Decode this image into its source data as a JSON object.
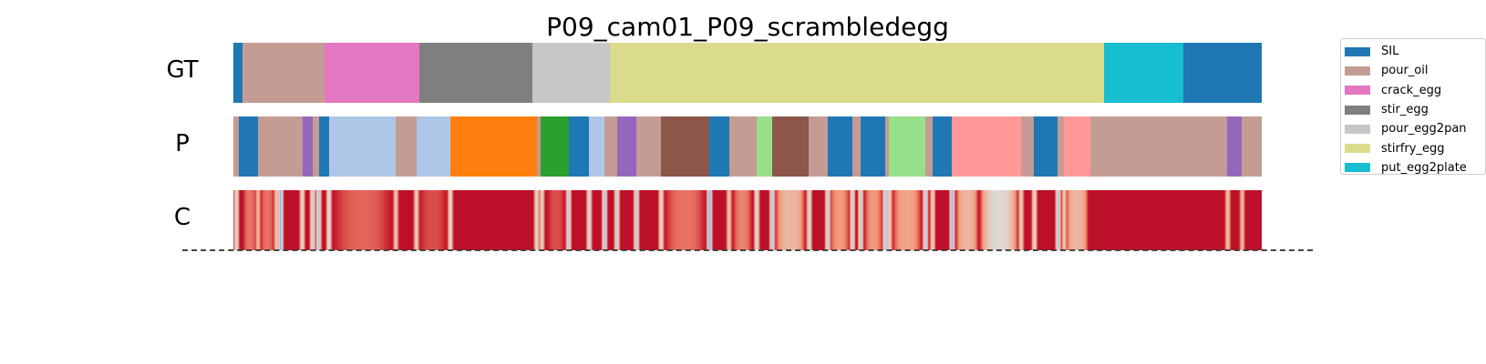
{
  "chart_data": {
    "type": "segmentation",
    "title": "P09_cam01_P09_scrambledegg",
    "rows": [
      {
        "label": "GT",
        "segments": [
          {
            "action": "SIL",
            "start": 0,
            "end": 0.9
          },
          {
            "action": "pour_oil",
            "start": 0.9,
            "end": 8.9
          },
          {
            "action": "crack_egg",
            "start": 8.9,
            "end": 18.1
          },
          {
            "action": "stir_egg",
            "start": 18.1,
            "end": 29.1
          },
          {
            "action": "pour_egg2pan",
            "start": 29.1,
            "end": 36.6
          },
          {
            "action": "stirfry_egg",
            "start": 36.6,
            "end": 84.7
          },
          {
            "action": "put_egg2plate",
            "start": 84.7,
            "end": 92.4
          },
          {
            "action": "SIL",
            "start": 92.4,
            "end": 100
          }
        ]
      },
      {
        "label": "P",
        "segments": [
          {
            "action": "pour_oil",
            "start": 0,
            "end": 0.5
          },
          {
            "action": "SIL",
            "start": 0.5,
            "end": 2.4
          },
          {
            "action": "pour_oil",
            "start": 2.4,
            "end": 6.7
          },
          {
            "action": "class_purple",
            "start": 6.7,
            "end": 7.7
          },
          {
            "action": "pour_oil",
            "start": 7.7,
            "end": 8.3
          },
          {
            "action": "SIL",
            "start": 8.3,
            "end": 9.3
          },
          {
            "action": "class_lightblue",
            "start": 9.3,
            "end": 15.8
          },
          {
            "action": "pour_oil",
            "start": 15.8,
            "end": 17.8
          },
          {
            "action": "class_lightblue",
            "start": 17.8,
            "end": 21.1
          },
          {
            "action": "class_orange",
            "start": 21.1,
            "end": 29.5
          },
          {
            "action": "pour_oil",
            "start": 29.5,
            "end": 29.9
          },
          {
            "action": "class_green",
            "start": 29.9,
            "end": 32.6
          },
          {
            "action": "SIL",
            "start": 32.6,
            "end": 34.6
          },
          {
            "action": "class_lightblue",
            "start": 34.6,
            "end": 36.1
          },
          {
            "action": "pour_oil",
            "start": 36.1,
            "end": 37.3
          },
          {
            "action": "class_purple",
            "start": 37.3,
            "end": 39.2
          },
          {
            "action": "pour_oil",
            "start": 39.2,
            "end": 41.6
          },
          {
            "action": "class_brown",
            "start": 41.6,
            "end": 46.3
          },
          {
            "action": "SIL",
            "start": 46.3,
            "end": 48.2
          },
          {
            "action": "pour_oil",
            "start": 48.2,
            "end": 50.9
          },
          {
            "action": "class_lightgreen",
            "start": 50.9,
            "end": 52.4
          },
          {
            "action": "class_brown",
            "start": 52.4,
            "end": 56.0
          },
          {
            "action": "pour_oil",
            "start": 56.0,
            "end": 57.8
          },
          {
            "action": "SIL",
            "start": 57.8,
            "end": 60.2
          },
          {
            "action": "pour_oil",
            "start": 60.2,
            "end": 61.0
          },
          {
            "action": "SIL",
            "start": 61.0,
            "end": 63.4
          },
          {
            "action": "pour_oil",
            "start": 63.4,
            "end": 63.8
          },
          {
            "action": "class_lightgreen",
            "start": 63.8,
            "end": 67.3
          },
          {
            "action": "pour_oil",
            "start": 67.3,
            "end": 68.0
          },
          {
            "action": "SIL",
            "start": 68.0,
            "end": 69.9
          },
          {
            "action": "class_pink",
            "start": 69.9,
            "end": 76.6
          },
          {
            "action": "pour_oil",
            "start": 76.6,
            "end": 77.9
          },
          {
            "action": "SIL",
            "start": 77.9,
            "end": 80.2
          },
          {
            "action": "pour_oil",
            "start": 80.2,
            "end": 80.8
          },
          {
            "action": "class_pink",
            "start": 80.8,
            "end": 83.4
          },
          {
            "action": "pour_oil",
            "start": 83.4,
            "end": 96.7
          },
          {
            "action": "class_purple",
            "start": 96.7,
            "end": 98.1
          },
          {
            "action": "pour_oil",
            "start": 98.1,
            "end": 100
          }
        ]
      }
    ],
    "confidence_row": {
      "label": "C",
      "colormap": "coolwarm",
      "dips": [
        {
          "pos": 0.3,
          "v": 0.45
        },
        {
          "pos": 2.4,
          "v": 0.6
        },
        {
          "pos": 4.2,
          "v": 0.55
        },
        {
          "pos": 4.6,
          "v": 0.2
        },
        {
          "pos": 6.7,
          "v": 0.45
        },
        {
          "pos": 7.7,
          "v": 0.35
        },
        {
          "pos": 8.3,
          "v": 0.3
        },
        {
          "pos": 9.3,
          "v": 0.4
        },
        {
          "pos": 15.8,
          "v": 0.55
        },
        {
          "pos": 17.8,
          "v": 0.5
        },
        {
          "pos": 21.1,
          "v": 0.45
        },
        {
          "pos": 29.5,
          "v": 0.45
        },
        {
          "pos": 30.0,
          "v": 0.5
        },
        {
          "pos": 32.6,
          "v": 0.35
        },
        {
          "pos": 34.6,
          "v": 0.4
        },
        {
          "pos": 36.1,
          "v": 0.3
        },
        {
          "pos": 37.3,
          "v": 0.35
        },
        {
          "pos": 39.2,
          "v": 0.3
        },
        {
          "pos": 41.6,
          "v": 0.45
        },
        {
          "pos": 46.3,
          "v": 0.2
        },
        {
          "pos": 48.2,
          "v": 0.55
        },
        {
          "pos": 50.9,
          "v": 0.4
        },
        {
          "pos": 52.4,
          "v": 0.3
        },
        {
          "pos": 56.0,
          "v": 0.4
        },
        {
          "pos": 57.8,
          "v": 0.35
        },
        {
          "pos": 60.2,
          "v": 0.4
        },
        {
          "pos": 61.0,
          "v": 0.35
        },
        {
          "pos": 63.4,
          "v": 0.3
        },
        {
          "pos": 63.8,
          "v": 0.45
        },
        {
          "pos": 67.3,
          "v": 0.3
        },
        {
          "pos": 68.0,
          "v": 0.5
        },
        {
          "pos": 69.9,
          "v": 0.25
        },
        {
          "pos": 76.6,
          "v": 0.5
        },
        {
          "pos": 77.9,
          "v": 0.45
        },
        {
          "pos": 80.2,
          "v": 0.3
        },
        {
          "pos": 80.8,
          "v": 0.55
        },
        {
          "pos": 96.7,
          "v": 0.55
        },
        {
          "pos": 98.1,
          "v": 0.6
        }
      ],
      "soft_regions": [
        {
          "start": 0.9,
          "end": 2.3,
          "v": 0.8
        },
        {
          "start": 2.6,
          "end": 4.0,
          "v": 0.8
        },
        {
          "start": 9.6,
          "end": 15.5,
          "v": 0.82
        },
        {
          "start": 18.0,
          "end": 20.8,
          "v": 0.85
        },
        {
          "start": 30.5,
          "end": 32.3,
          "v": 0.85
        },
        {
          "start": 41.8,
          "end": 46.0,
          "v": 0.8
        },
        {
          "start": 48.5,
          "end": 50.5,
          "v": 0.78
        },
        {
          "start": 52.6,
          "end": 55.7,
          "v": 0.65
        },
        {
          "start": 57.9,
          "end": 60.0,
          "v": 0.75
        },
        {
          "start": 61.3,
          "end": 63.2,
          "v": 0.75
        },
        {
          "start": 64.0,
          "end": 67.0,
          "v": 0.72
        },
        {
          "start": 70.2,
          "end": 72.5,
          "v": 0.65
        },
        {
          "start": 72.5,
          "end": 76.4,
          "v": 0.52
        },
        {
          "start": 80.9,
          "end": 83.2,
          "v": 0.65
        }
      ]
    },
    "legend": [
      {
        "name": "SIL",
        "color": "#1f77b4"
      },
      {
        "name": "pour_oil",
        "color": "#c49c94"
      },
      {
        "name": "crack_egg",
        "color": "#e377c2"
      },
      {
        "name": "stir_egg",
        "color": "#7f7f7f"
      },
      {
        "name": "pour_egg2pan",
        "color": "#c7c7c7"
      },
      {
        "name": "stirfry_egg",
        "color": "#dbdb8d"
      },
      {
        "name": "put_egg2plate",
        "color": "#17becf"
      }
    ],
    "extra_colors": {
      "class_purple": "#9467bd",
      "class_lightblue": "#aec7e8",
      "class_orange": "#ff7f0e",
      "class_green": "#2ca02c",
      "class_brown": "#8c564b",
      "class_lightgreen": "#98df8a",
      "class_pink": "#ff9896"
    },
    "legend_placement": "upper-right (outside plot)"
  }
}
